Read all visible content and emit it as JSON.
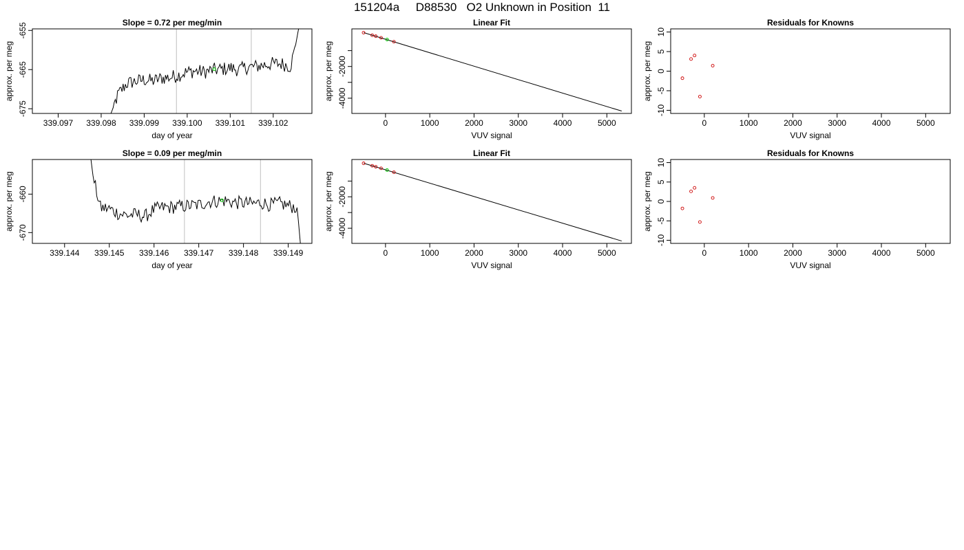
{
  "page_title": "151204a     D88530   O2 Unknown in Position  11",
  "colors": {
    "line": "#000000",
    "marker": "#cc0000",
    "highlight": "#00cc00",
    "vline": "#bebebe"
  },
  "chart_data": [
    {
      "type": "line",
      "title": "Slope =  0.72  per meg/min",
      "xlabel": "day of year",
      "ylabel": "approx. per meg",
      "xlim": [
        339.0964,
        339.1029
      ],
      "ylim": [
        -676.2,
        -654.6
      ],
      "xticks": [
        339.097,
        339.098,
        339.099,
        339.1,
        339.101,
        339.102
      ],
      "xtick_labels": [
        "339.097",
        "339.098",
        "339.099",
        "339.100",
        "339.101",
        "339.102"
      ],
      "yticks": [
        -655,
        -665,
        -675
      ],
      "ytick_labels": [
        "-655",
        "-665",
        "-675"
      ],
      "vlines": [
        339.09975,
        339.10149
      ],
      "highlight_point": {
        "x": 339.10063,
        "y": -664.9
      },
      "series_anchor": [
        [
          339.0982,
          -677.0
        ],
        [
          339.0984,
          -671.2
        ],
        [
          339.0986,
          -668.5
        ],
        [
          339.0988,
          -668.0
        ],
        [
          339.099,
          -667.6
        ],
        [
          339.0992,
          -667.9
        ],
        [
          339.0994,
          -667.2
        ],
        [
          339.0996,
          -667.0
        ],
        [
          339.0998,
          -666.4
        ],
        [
          339.1,
          -665.6
        ],
        [
          339.1002,
          -665.4
        ],
        [
          339.1004,
          -665.6
        ],
        [
          339.1006,
          -665.1
        ],
        [
          339.1008,
          -664.9
        ],
        [
          339.101,
          -664.6
        ],
        [
          339.1012,
          -665.0
        ],
        [
          339.1014,
          -664.4
        ],
        [
          339.1016,
          -664.2
        ],
        [
          339.1018,
          -663.8
        ],
        [
          339.102,
          -663.5
        ],
        [
          339.1022,
          -663.5
        ],
        [
          339.1024,
          -664.2
        ],
        [
          339.1025,
          -660.0
        ],
        [
          339.1026,
          -654.0
        ]
      ]
    },
    {
      "type": "scatter",
      "title": "Linear Fit",
      "xlabel": "VUV signal",
      "ylabel": "approx. per meg",
      "xlim": [
        -760,
        5555
      ],
      "ylim": [
        -4960,
        370
      ],
      "xticks": [
        0,
        1000,
        2000,
        3000,
        4000,
        5000
      ],
      "xtick_labels": [
        "0",
        "1000",
        "2000",
        "3000",
        "4000",
        "5000"
      ],
      "yticks": [
        -1000,
        -2000,
        -3000,
        -4000
      ],
      "ytick_labels": [
        "",
        "-2000",
        "",
        "-4000"
      ],
      "fit_line": {
        "x": [
          -490,
          5335
        ],
        "y": [
          130,
          -4810
        ]
      },
      "points": {
        "x": [
          -495,
          -300,
          -220,
          -100,
          190
        ],
        "y": [
          130,
          -30,
          -90,
          -190,
          -440
        ]
      },
      "highlight_point": {
        "x": 35,
        "y": -300
      }
    },
    {
      "type": "scatter",
      "title": "Residuals for Knowns",
      "xlabel": "VUV signal",
      "ylabel": "approx. per meg",
      "xlim": [
        -760,
        5555
      ],
      "ylim": [
        -10.8,
        10.8
      ],
      "xticks": [
        0,
        1000,
        2000,
        3000,
        4000,
        5000
      ],
      "xtick_labels": [
        "0",
        "1000",
        "2000",
        "3000",
        "4000",
        "5000"
      ],
      "yticks": [
        10,
        5,
        0,
        -5,
        -10
      ],
      "ytick_labels": [
        "10",
        "5",
        "0",
        "-5",
        "-10"
      ],
      "points": {
        "x": [
          -495,
          -300,
          -220,
          -100,
          190
        ],
        "y": [
          -1.8,
          3.1,
          4.0,
          -6.5,
          1.4
        ]
      }
    },
    {
      "type": "line",
      "title": "Slope =  0.09  per meg/min",
      "xlabel": "day of year",
      "ylabel": "approx. per meg",
      "xlim": [
        339.14328,
        339.14953
      ],
      "ylim": [
        -672.8,
        -651.0
      ],
      "xticks": [
        339.144,
        339.145,
        339.146,
        339.147,
        339.148,
        339.149
      ],
      "xtick_labels": [
        "339.144",
        "339.145",
        "339.146",
        "339.147",
        "339.148",
        "339.149"
      ],
      "yticks": [
        -660,
        -670
      ],
      "ytick_labels": [
        "-660",
        "-670"
      ],
      "vlines": [
        339.14668,
        339.14838
      ],
      "highlight_point": {
        "x": 339.14752,
        "y": -661.6
      },
      "series_anchor": [
        [
          339.14458,
          -650.0
        ],
        [
          339.14465,
          -656.5
        ],
        [
          339.14472,
          -659.5
        ],
        [
          339.1448,
          -663.5
        ],
        [
          339.145,
          -663.8
        ],
        [
          339.1452,
          -665.0
        ],
        [
          339.1454,
          -665.5
        ],
        [
          339.1456,
          -665.3
        ],
        [
          339.1458,
          -665.8
        ],
        [
          339.146,
          -664.0
        ],
        [
          339.1462,
          -663.5
        ],
        [
          339.1464,
          -663.4
        ],
        [
          339.1466,
          -663.2
        ],
        [
          339.1468,
          -663.0
        ],
        [
          339.147,
          -662.8
        ],
        [
          339.1472,
          -662.0
        ],
        [
          339.1474,
          -661.8
        ],
        [
          339.1476,
          -661.7
        ],
        [
          339.1478,
          -662.2
        ],
        [
          339.148,
          -662.3
        ],
        [
          339.1482,
          -662.5
        ],
        [
          339.1484,
          -662.2
        ],
        [
          339.1486,
          -662.8
        ],
        [
          339.1488,
          -662.4
        ],
        [
          339.149,
          -663.0
        ],
        [
          339.1492,
          -663.5
        ],
        [
          339.14925,
          -670.0
        ],
        [
          339.14928,
          -674.0
        ]
      ]
    },
    {
      "type": "scatter",
      "title": "Linear Fit",
      "xlabel": "VUV signal",
      "ylabel": "approx. per meg",
      "xlim": [
        -760,
        5555
      ],
      "ylim": [
        -4960,
        370
      ],
      "xticks": [
        0,
        1000,
        2000,
        3000,
        4000,
        5000
      ],
      "xtick_labels": [
        "0",
        "1000",
        "2000",
        "3000",
        "4000",
        "5000"
      ],
      "yticks": [
        -1000,
        -2000,
        -3000,
        -4000
      ],
      "ytick_labels": [
        "",
        "-2000",
        "",
        "-4000"
      ],
      "fit_line": {
        "x": [
          -490,
          5335
        ],
        "y": [
          130,
          -4810
        ]
      },
      "points": {
        "x": [
          -495,
          -300,
          -220,
          -100,
          190
        ],
        "y": [
          130,
          -30,
          -90,
          -190,
          -440
        ]
      },
      "highlight_point": {
        "x": 35,
        "y": -300
      }
    },
    {
      "type": "scatter",
      "title": "Residuals for Knowns",
      "xlabel": "VUV signal",
      "ylabel": "approx. per meg",
      "xlim": [
        -760,
        5555
      ],
      "ylim": [
        -10.8,
        10.8
      ],
      "xticks": [
        0,
        1000,
        2000,
        3000,
        4000,
        5000
      ],
      "xtick_labels": [
        "0",
        "1000",
        "2000",
        "3000",
        "4000",
        "5000"
      ],
      "yticks": [
        10,
        5,
        0,
        -5,
        -10
      ],
      "ytick_labels": [
        "10",
        "5",
        "0",
        "-5",
        "-10"
      ],
      "points": {
        "x": [
          -495,
          -300,
          -220,
          -100,
          190
        ],
        "y": [
          -1.8,
          2.6,
          3.5,
          -5.3,
          0.9
        ]
      }
    }
  ]
}
